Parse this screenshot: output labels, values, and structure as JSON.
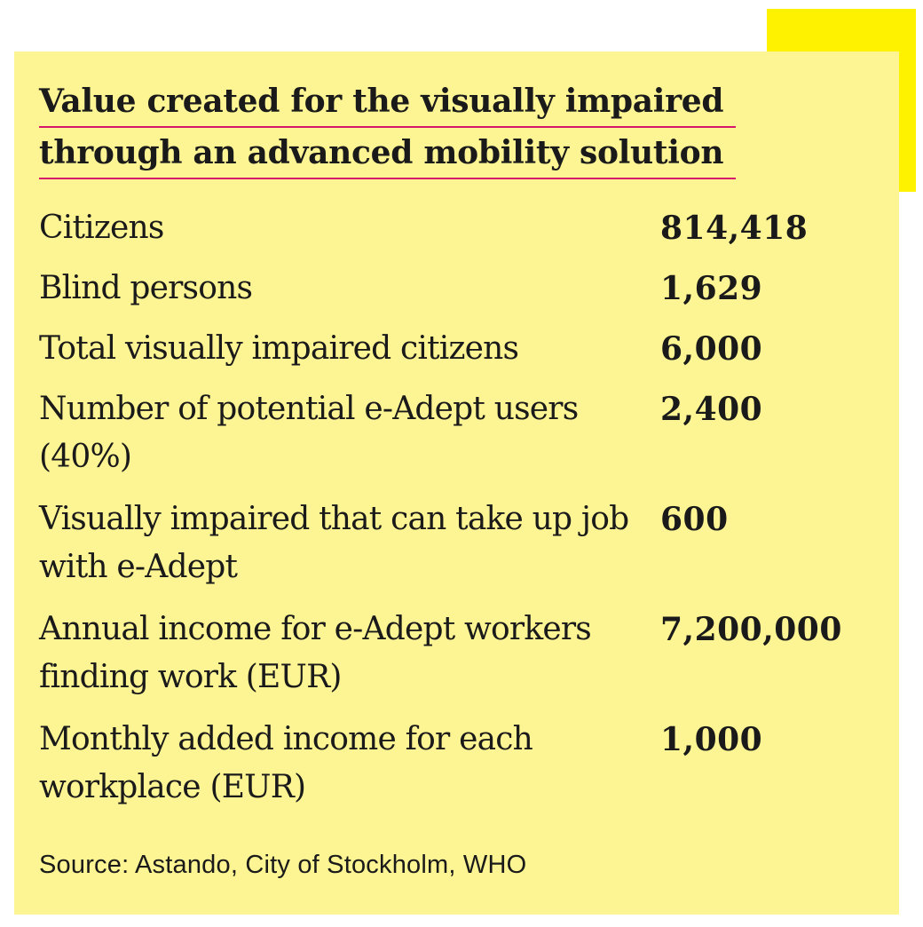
{
  "colors": {
    "accent_yellow": "#fff200",
    "card_background": "#fdf493",
    "title_underline": "#d6166b",
    "text": "#1a1a1a"
  },
  "title": {
    "line1": "Value created for the visually impaired",
    "line2": "through an advanced mobility solution"
  },
  "rows": [
    {
      "label": "Citizens",
      "value": "814,418"
    },
    {
      "label": "Blind persons",
      "value": "1,629"
    },
    {
      "label": "Total visually impaired citizens",
      "value": "6,000"
    },
    {
      "label": "Number of potential e-Adept users (40%)",
      "value": "2,400"
    },
    {
      "label": "Visually impaired that can take up job with e-Adept",
      "value": "600"
    },
    {
      "label": "Annual income for e-Adept workers finding work (EUR)",
      "value": "7,200,000"
    },
    {
      "label": "Monthly added income for each workplace (EUR)",
      "value": "1,000"
    }
  ],
  "source": "Source: Astando, City of Stockholm, WHO"
}
